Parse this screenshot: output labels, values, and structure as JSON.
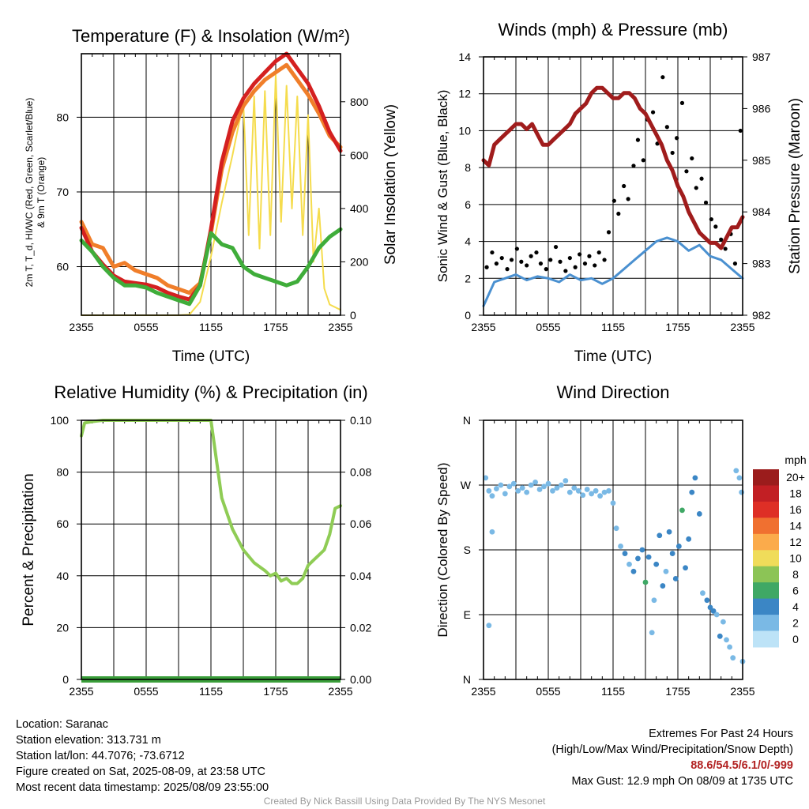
{
  "chart_data": [
    {
      "type": "line",
      "title": "Temperature (F) & Insolation (W/m²)",
      "xlabel": "Time (UTC)",
      "ylabel": "2m T, T_d, HI/WC (Red, Green, Scarlet/Blue) & 9m T (Orange)",
      "y2label": "Solar Insolation (Yellow)",
      "xticks": [
        "2355",
        "0555",
        "1155",
        "1755",
        "2355"
      ],
      "xlim": [
        0,
        24
      ],
      "ylim": [
        53.5,
        88.5
      ],
      "y2lim": [
        0,
        980
      ],
      "yticks": [
        60,
        70,
        80
      ],
      "y2ticks": [
        0,
        200,
        400,
        600,
        800
      ],
      "grid": true,
      "series": [
        {
          "name": "2m T",
          "color": "#d42020",
          "axis": "y1",
          "x": [
            0,
            1,
            2,
            3,
            4,
            5,
            6,
            7,
            8,
            9,
            10,
            11,
            12,
            13,
            14,
            15,
            16,
            17,
            18,
            19,
            20,
            21,
            22,
            23,
            24
          ],
          "values": [
            65.2,
            62.0,
            60.3,
            58.8,
            58.0,
            57.8,
            57.6,
            57.2,
            56.5,
            56.0,
            55.6,
            57.5,
            65.0,
            74.0,
            79.5,
            82.5,
            84.5,
            86.0,
            87.5,
            88.5,
            86.5,
            84.5,
            81.5,
            78.0,
            75.5
          ]
        },
        {
          "name": "9m T",
          "color": "#f07e2a",
          "axis": "y1",
          "x": [
            0,
            1,
            2,
            3,
            4,
            5,
            6,
            7,
            8,
            9,
            10,
            11,
            12,
            13,
            14,
            15,
            16,
            17,
            18,
            19,
            20,
            21,
            22,
            23,
            24
          ],
          "values": [
            66.0,
            63.0,
            62.5,
            60.0,
            60.5,
            59.5,
            59.0,
            58.5,
            57.5,
            57.0,
            56.5,
            57.8,
            64.5,
            73.0,
            78.0,
            81.5,
            83.5,
            85.0,
            86.0,
            87.0,
            85.0,
            83.0,
            80.5,
            77.5,
            76.0
          ]
        },
        {
          "name": "Dew Point",
          "color": "#3fad3a",
          "axis": "y1",
          "x": [
            0,
            1,
            2,
            3,
            4,
            5,
            6,
            7,
            8,
            9,
            10,
            11,
            12,
            13,
            14,
            15,
            16,
            17,
            18,
            19,
            20,
            21,
            22,
            23,
            24
          ],
          "values": [
            63.5,
            62.0,
            60.0,
            58.5,
            57.5,
            57.5,
            57.2,
            56.5,
            56.0,
            55.5,
            55.0,
            57.5,
            64.5,
            63.0,
            62.5,
            60.0,
            59.0,
            58.5,
            58.0,
            57.5,
            58.0,
            60.0,
            62.5,
            64.0,
            65.0
          ]
        },
        {
          "name": "Solar Insolation",
          "color": "#f5dc4d",
          "axis": "y2",
          "x": [
            0,
            2,
            4,
            6,
            8,
            9,
            10,
            11,
            12,
            13,
            14,
            15,
            15.5,
            16,
            16.5,
            17,
            17.5,
            18,
            18.5,
            19,
            19.5,
            20,
            20.5,
            21,
            21.5,
            22,
            22.5,
            23,
            24
          ],
          "values": [
            0,
            0,
            0,
            0,
            0,
            0,
            2,
            50,
            220,
            420,
            600,
            800,
            300,
            820,
            250,
            840,
            300,
            900,
            350,
            860,
            400,
            820,
            300,
            750,
            200,
            400,
            100,
            40,
            20
          ]
        }
      ]
    },
    {
      "type": "line",
      "title": "Winds (mph) & Pressure (mb)",
      "xlabel": "Time (UTC)",
      "ylabel": "Sonic Wind & Gust (Blue, Black)",
      "y2label": "Station Pressure (Maroon)",
      "xticks": [
        "2355",
        "0555",
        "1155",
        "1755",
        "2355"
      ],
      "xlim": [
        0,
        24
      ],
      "ylim": [
        0,
        14
      ],
      "y2lim": [
        982,
        987
      ],
      "yticks": [
        0,
        2,
        4,
        6,
        8,
        10,
        12,
        14
      ],
      "y2ticks": [
        982,
        983,
        984,
        985,
        986,
        987
      ],
      "grid": true,
      "series": [
        {
          "name": "Sonic Wind",
          "color": "#4a90d0",
          "axis": "y1",
          "x": [
            0,
            1,
            2,
            3,
            4,
            5,
            6,
            7,
            8,
            9,
            10,
            11,
            12,
            13,
            14,
            15,
            16,
            17,
            18,
            19,
            20,
            21,
            22,
            23,
            24
          ],
          "values": [
            0.5,
            1.8,
            2.0,
            2.2,
            1.9,
            2.1,
            2.0,
            1.8,
            2.2,
            1.9,
            2.0,
            1.7,
            2.0,
            2.5,
            3.0,
            3.5,
            4.0,
            4.2,
            4.0,
            3.5,
            3.8,
            3.2,
            3.0,
            2.5,
            2.0
          ]
        },
        {
          "name": "Gust",
          "color": "#000000",
          "axis": "y1",
          "x": [
            0.3,
            0.8,
            1.2,
            1.7,
            2.2,
            2.6,
            3.1,
            3.5,
            4.0,
            4.4,
            4.9,
            5.3,
            5.8,
            6.2,
            6.7,
            7.1,
            7.6,
            8.0,
            8.5,
            8.9,
            9.4,
            9.8,
            10.3,
            10.7,
            11.2,
            11.6,
            12.1,
            12.5,
            13.0,
            13.4,
            13.9,
            14.3,
            14.8,
            15.2,
            15.7,
            16.1,
            16.6,
            17.0,
            17.5,
            17.9,
            18.4,
            18.8,
            19.3,
            19.7,
            20.2,
            20.6,
            21.1,
            21.5,
            22.0,
            22.4,
            22.9,
            23.3,
            23.8
          ],
          "values": [
            2.6,
            3.4,
            2.8,
            3.1,
            2.5,
            3.0,
            3.6,
            2.9,
            2.7,
            3.2,
            3.4,
            2.8,
            2.5,
            3.0,
            3.7,
            2.9,
            2.4,
            3.1,
            2.6,
            3.3,
            2.8,
            3.2,
            2.7,
            3.4,
            3.0,
            4.5,
            6.2,
            5.5,
            7.0,
            6.3,
            8.1,
            9.5,
            8.4,
            10.6,
            11.0,
            9.3,
            12.9,
            10.2,
            8.8,
            9.6,
            11.5,
            7.8,
            8.5,
            6.9,
            7.4,
            6.1,
            5.2,
            4.8,
            4.1,
            3.6,
            4.4,
            2.8,
            10.0
          ]
        },
        {
          "name": "Station Pressure",
          "color": "#a01c1c",
          "axis": "y2",
          "x": [
            0,
            0.5,
            1,
            1.5,
            2,
            2.5,
            3,
            3.5,
            4,
            4.5,
            5,
            5.5,
            6,
            6.5,
            7,
            7.5,
            8,
            8.5,
            9,
            9.5,
            10,
            10.5,
            11,
            11.5,
            12,
            12.5,
            13,
            13.5,
            14,
            14.5,
            15,
            15.5,
            16,
            16.5,
            17,
            17.5,
            18,
            18.5,
            19,
            19.5,
            20,
            20.5,
            21,
            21.5,
            22,
            22.5,
            23,
            23.5,
            24
          ],
          "values": [
            985.0,
            984.9,
            985.3,
            985.4,
            985.5,
            985.6,
            985.7,
            985.7,
            985.6,
            985.7,
            985.5,
            985.3,
            985.3,
            985.4,
            985.5,
            985.6,
            985.7,
            985.9,
            986.0,
            986.1,
            986.3,
            986.4,
            986.4,
            986.3,
            986.2,
            986.2,
            986.3,
            986.3,
            986.2,
            986.0,
            985.9,
            985.7,
            985.5,
            985.3,
            985.0,
            984.8,
            984.5,
            984.3,
            984.0,
            983.8,
            983.6,
            983.5,
            983.4,
            983.4,
            983.3,
            983.5,
            983.7,
            983.7,
            983.9
          ]
        }
      ]
    },
    {
      "type": "line",
      "title": "Relative Humidity (%) & Precipitation (in)",
      "xlabel": "",
      "ylabel": "Percent & Precipitation",
      "xticks": [
        "2355",
        "0555",
        "1155",
        "1755",
        "2355"
      ],
      "xlim": [
        0,
        24
      ],
      "ylim": [
        0,
        100
      ],
      "y2lim": [
        0,
        0.1
      ],
      "yticks": [
        0,
        20,
        40,
        60,
        80,
        100
      ],
      "y2ticks": [
        "0.00",
        "0.02",
        "0.04",
        "0.06",
        "0.08",
        "0.10"
      ],
      "grid": true,
      "series": [
        {
          "name": "Relative Humidity",
          "color": "#8fcc55",
          "axis": "y1",
          "x": [
            0,
            0.3,
            1,
            2,
            3,
            5,
            7,
            9,
            11,
            12,
            12.5,
            13,
            14,
            15,
            16,
            17,
            17.5,
            18,
            18.5,
            19,
            19.5,
            20,
            20.5,
            21,
            21.5,
            22,
            22.5,
            23,
            23.5,
            24
          ],
          "values": [
            94,
            99,
            99.5,
            100,
            100,
            100,
            100,
            100,
            100,
            100,
            85,
            70,
            58,
            50,
            45,
            42,
            40,
            41,
            38,
            39,
            37,
            37,
            39,
            44,
            46,
            48,
            50,
            56,
            66,
            67
          ]
        },
        {
          "name": "Precipitation",
          "color": "#3a9e3a",
          "axis": "y2",
          "x": [
            0,
            24
          ],
          "values": [
            0,
            0
          ]
        }
      ]
    },
    {
      "type": "scatter",
      "title": "Wind Direction",
      "xlabel": "",
      "ylabel": "Direction (Colored By Speed)",
      "xticks": [
        "2355",
        "0555",
        "1155",
        "1755",
        "2355"
      ],
      "xlim": [
        0,
        24
      ],
      "ylim": [
        0,
        360
      ],
      "yticks": [
        "N",
        "E",
        "S",
        "W",
        "N"
      ],
      "grid": true,
      "colorbar": {
        "title": "mph",
        "labels": [
          "20+",
          "18",
          "16",
          "14",
          "12",
          "10",
          "8",
          "6",
          "4",
          "2",
          "0"
        ],
        "colors": [
          "#9b1c1c",
          "#c21f24",
          "#de2f26",
          "#f07030",
          "#fbab4b",
          "#f0dc5a",
          "#8cc456",
          "#3fa865",
          "#3b86c5",
          "#7ab9e5",
          "#bde3f7"
        ]
      },
      "points": [
        {
          "x": 0.2,
          "y": 280,
          "s": 2
        },
        {
          "x": 0.5,
          "y": 262,
          "s": 1
        },
        {
          "x": 0.8,
          "y": 205,
          "s": 1
        },
        {
          "x": 0.5,
          "y": 75,
          "s": 1
        },
        {
          "x": 0.8,
          "y": 255,
          "s": 2
        },
        {
          "x": 1.2,
          "y": 265,
          "s": 2
        },
        {
          "x": 1.6,
          "y": 270,
          "s": 2
        },
        {
          "x": 2.0,
          "y": 258,
          "s": 1
        },
        {
          "x": 2.4,
          "y": 268,
          "s": 2
        },
        {
          "x": 2.8,
          "y": 272,
          "s": 2
        },
        {
          "x": 3.2,
          "y": 262,
          "s": 1
        },
        {
          "x": 3.6,
          "y": 266,
          "s": 2
        },
        {
          "x": 4.0,
          "y": 260,
          "s": 1
        },
        {
          "x": 4.4,
          "y": 270,
          "s": 2
        },
        {
          "x": 4.8,
          "y": 274,
          "s": 2
        },
        {
          "x": 5.2,
          "y": 264,
          "s": 1
        },
        {
          "x": 5.6,
          "y": 268,
          "s": 2
        },
        {
          "x": 6.0,
          "y": 272,
          "s": 2
        },
        {
          "x": 6.4,
          "y": 262,
          "s": 2
        },
        {
          "x": 6.8,
          "y": 266,
          "s": 1
        },
        {
          "x": 7.2,
          "y": 270,
          "s": 2
        },
        {
          "x": 7.6,
          "y": 276,
          "s": 2
        },
        {
          "x": 8.0,
          "y": 260,
          "s": 1
        },
        {
          "x": 8.4,
          "y": 266,
          "s": 2
        },
        {
          "x": 8.8,
          "y": 262,
          "s": 1
        },
        {
          "x": 9.2,
          "y": 256,
          "s": 2
        },
        {
          "x": 9.6,
          "y": 264,
          "s": 2
        },
        {
          "x": 10.0,
          "y": 258,
          "s": 1
        },
        {
          "x": 10.4,
          "y": 262,
          "s": 2
        },
        {
          "x": 10.8,
          "y": 255,
          "s": 1
        },
        {
          "x": 11.2,
          "y": 260,
          "s": 2
        },
        {
          "x": 11.6,
          "y": 262,
          "s": 1
        },
        {
          "x": 12.0,
          "y": 245,
          "s": 2
        },
        {
          "x": 12.3,
          "y": 210,
          "s": 2
        },
        {
          "x": 12.7,
          "y": 185,
          "s": 2
        },
        {
          "x": 13.1,
          "y": 175,
          "s": 3
        },
        {
          "x": 13.5,
          "y": 160,
          "s": 2
        },
        {
          "x": 13.9,
          "y": 150,
          "s": 3
        },
        {
          "x": 14.3,
          "y": 168,
          "s": 3
        },
        {
          "x": 14.7,
          "y": 180,
          "s": 4
        },
        {
          "x": 15.0,
          "y": 135,
          "s": 6
        },
        {
          "x": 15.3,
          "y": 170,
          "s": 3
        },
        {
          "x": 15.6,
          "y": 65,
          "s": 2
        },
        {
          "x": 15.8,
          "y": 110,
          "s": 2
        },
        {
          "x": 16.0,
          "y": 160,
          "s": 3
        },
        {
          "x": 16.3,
          "y": 200,
          "s": 4
        },
        {
          "x": 16.6,
          "y": 130,
          "s": 3
        },
        {
          "x": 16.9,
          "y": 150,
          "s": 2
        },
        {
          "x": 17.2,
          "y": 205,
          "s": 3
        },
        {
          "x": 17.5,
          "y": 175,
          "s": 4
        },
        {
          "x": 17.8,
          "y": 140,
          "s": 3
        },
        {
          "x": 18.1,
          "y": 185,
          "s": 4
        },
        {
          "x": 18.4,
          "y": 235,
          "s": 5
        },
        {
          "x": 18.7,
          "y": 155,
          "s": 3
        },
        {
          "x": 19.0,
          "y": 195,
          "s": 3
        },
        {
          "x": 19.3,
          "y": 260,
          "s": 4
        },
        {
          "x": 19.6,
          "y": 280,
          "s": 3
        },
        {
          "x": 20.0,
          "y": 230,
          "s": 3
        },
        {
          "x": 20.3,
          "y": 120,
          "s": 2
        },
        {
          "x": 20.7,
          "y": 110,
          "s": 3
        },
        {
          "x": 21.0,
          "y": 100,
          "s": 3
        },
        {
          "x": 21.3,
          "y": 95,
          "s": 4
        },
        {
          "x": 21.6,
          "y": 90,
          "s": 2
        },
        {
          "x": 21.9,
          "y": 60,
          "s": 4
        },
        {
          "x": 22.2,
          "y": 80,
          "s": 2
        },
        {
          "x": 22.5,
          "y": 55,
          "s": 2
        },
        {
          "x": 22.8,
          "y": 45,
          "s": 2
        },
        {
          "x": 23.1,
          "y": 30,
          "s": 2
        },
        {
          "x": 23.4,
          "y": 290,
          "s": 2
        },
        {
          "x": 23.7,
          "y": 280,
          "s": 2
        },
        {
          "x": 23.9,
          "y": 260,
          "s": 2
        },
        {
          "x": 24.0,
          "y": 25,
          "s": 2
        }
      ]
    }
  ],
  "info": {
    "location": "Location: Saranac",
    "elevation": "Station elevation: 313.731 m",
    "latlon": "Station lat/lon: 44.7076; -73.6712",
    "created": "Figure created on Sat, 2025-08-09, at 23:58 UTC",
    "recent": "Most recent data timestamp: 2025/08/09 23:55:00"
  },
  "extremes": {
    "title": "Extremes For Past 24 Hours",
    "subtitle": "(High/Low/Max Wind/Precipitation/Snow Depth)",
    "values": "88.6/54.5/6.1/0/-999",
    "gust": "Max Gust: 12.9 mph On 08/09 at 1735 UTC"
  },
  "credit": "Created By Nick Bassill Using Data Provided By The NYS Mesonet"
}
